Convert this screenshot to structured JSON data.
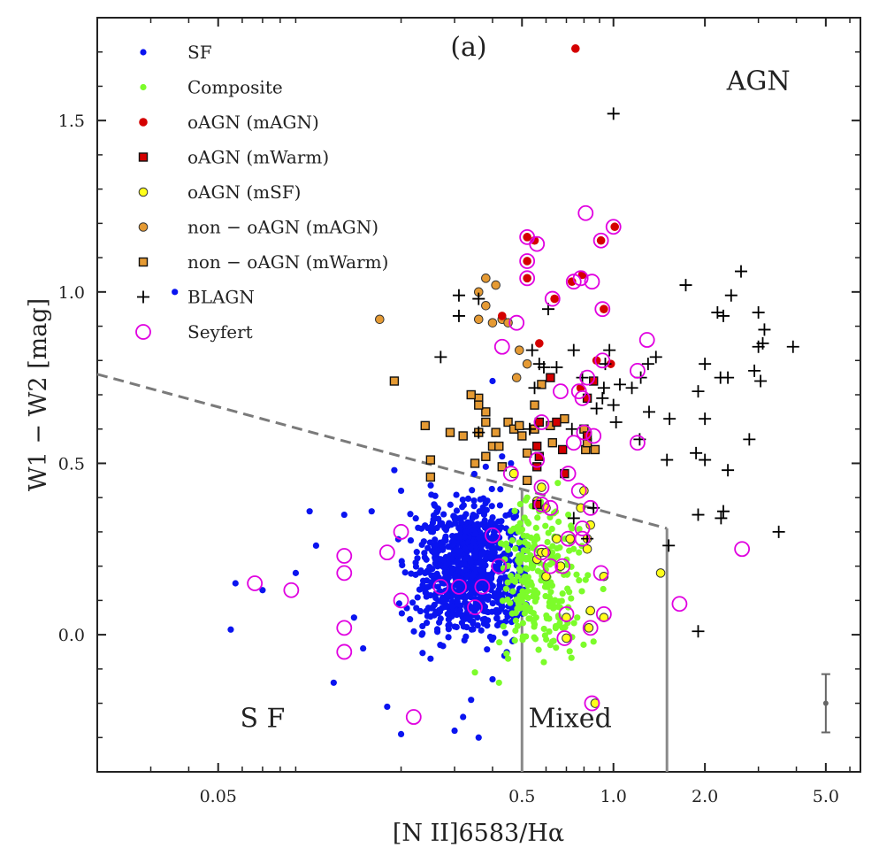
{
  "chart_data": {
    "type": "scatter",
    "panel_label": "(a)",
    "xlabel": "[N II]6583/Hα",
    "ylabel": "W1 − W2 [mag]",
    "x_scale": "log",
    "xlim": [
      0.02,
      6.5
    ],
    "ylim": [
      -0.4,
      1.8
    ],
    "x_ticks": [
      {
        "value": 0.05,
        "label": "0.05"
      },
      {
        "value": 0.5,
        "label": "0.5"
      },
      {
        "value": 1.0,
        "label": "1.0"
      },
      {
        "value": 2.0,
        "label": "2.0"
      },
      {
        "value": 5.0,
        "label": "5.0"
      }
    ],
    "y_ticks": [
      {
        "value": 0.0,
        "label": "0.0"
      },
      {
        "value": 0.5,
        "label": "0.5"
      },
      {
        "value": 1.0,
        "label": "1.0"
      },
      {
        "value": 1.5,
        "label": "1.5"
      }
    ],
    "grid": false,
    "legend_position": "top-left",
    "legend": [
      {
        "key": "sf",
        "label": "SF"
      },
      {
        "key": "comp",
        "label": "Composite"
      },
      {
        "key": "oagn_magn",
        "label": "oAGN (mAGN)"
      },
      {
        "key": "oagn_mwarm",
        "label": "oAGN (mWarm)"
      },
      {
        "key": "oagn_msf",
        "label": "oAGN (mSF)"
      },
      {
        "key": "non_magn",
        "label": "non − oAGN (mAGN)"
      },
      {
        "key": "non_mwarm",
        "label": "non − oAGN (mWarm)"
      },
      {
        "key": "blagn",
        "label": "BLAGN"
      },
      {
        "key": "seyfert",
        "label": "Seyfert"
      }
    ],
    "region_labels": [
      {
        "text": "AGN",
        "x": 3.0,
        "y": 1.59
      },
      {
        "text": "S F",
        "x": 0.07,
        "y": -0.27
      },
      {
        "text": "Mixed",
        "x": 0.72,
        "y": -0.27
      }
    ],
    "dividers": {
      "dashed": [
        [
          0.02,
          0.76
        ],
        [
          1.5,
          0.31
        ]
      ],
      "verticals": [
        {
          "x": 0.5,
          "y_top": 0.425
        },
        {
          "x": 1.5,
          "y_top": 0.31
        }
      ]
    },
    "error_bar": {
      "x": 5.0,
      "y": -0.2,
      "err": 0.085
    },
    "series": [
      {
        "key": "sf",
        "name": "SF",
        "color": "#0a14f0",
        "points": [
          [
            0.036,
            1.0
          ],
          [
            0.4,
            0.74
          ],
          [
            0.057,
            0.15
          ],
          [
            0.055,
            0.015
          ],
          [
            0.1,
            0.36
          ],
          [
            0.13,
            0.35
          ],
          [
            0.12,
            -0.14
          ],
          [
            0.2,
            -0.29
          ],
          [
            0.19,
            0.48
          ],
          [
            0.34,
            -0.19
          ],
          [
            0.4,
            -0.13
          ],
          [
            0.3,
            -0.28
          ],
          [
            0.25,
            -0.07
          ],
          [
            0.15,
            -0.04
          ],
          [
            0.14,
            0.05
          ],
          [
            0.18,
            -0.21
          ],
          [
            0.07,
            0.13
          ],
          [
            0.09,
            0.18
          ],
          [
            0.105,
            0.26
          ],
          [
            0.16,
            0.36
          ],
          [
            0.2,
            0.42
          ],
          [
            0.43,
            0.52
          ],
          [
            0.38,
            0.49
          ],
          [
            0.32,
            -0.24
          ],
          [
            0.36,
            -0.3
          ],
          [
            0.46,
            0.5
          ]
        ]
      },
      {
        "key": "comp",
        "name": "Composite",
        "color": "#7cfc2a",
        "points": [
          [
            0.52,
            0.33
          ],
          [
            0.58,
            0.18
          ],
          [
            0.64,
            0.28
          ],
          [
            0.71,
            0.08
          ],
          [
            0.77,
            0.24
          ],
          [
            0.55,
            0.03
          ],
          [
            0.49,
            0.21
          ],
          [
            0.62,
            -0.03
          ],
          [
            0.68,
            0.12
          ],
          [
            0.81,
            0.16
          ],
          [
            0.5,
            0.1
          ],
          [
            0.57,
            0.36
          ],
          [
            0.59,
            -0.08
          ],
          [
            0.66,
            0.05
          ],
          [
            0.73,
            0.31
          ],
          [
            0.86,
            -0.02
          ],
          [
            0.55,
            0.26
          ],
          [
            0.6,
            0.14
          ],
          [
            0.45,
            -0.07
          ],
          [
            0.52,
            0.4
          ],
          [
            0.63,
            0.21
          ],
          [
            0.7,
            -0.01
          ],
          [
            0.76,
            0.05
          ],
          [
            0.42,
            -0.14
          ],
          [
            0.35,
            -0.11
          ]
        ]
      },
      {
        "key": "oagn_magn",
        "name": "oAGN (mAGN)",
        "color": "#d40000",
        "points": [
          [
            0.75,
            1.71
          ],
          [
            0.43,
            0.93
          ],
          [
            0.57,
            0.85
          ],
          [
            0.98,
            0.79
          ],
          [
            0.88,
            0.8
          ],
          [
            0.79,
            1.05
          ],
          [
            0.52,
            1.16
          ],
          [
            0.55,
            1.15
          ],
          [
            0.64,
            0.98
          ],
          [
            0.73,
            1.03
          ],
          [
            0.93,
            0.95
          ],
          [
            0.52,
            1.09
          ],
          [
            0.52,
            1.04
          ],
          [
            0.91,
            1.15
          ],
          [
            1.01,
            1.19
          ],
          [
            0.78,
            0.72
          ]
        ]
      },
      {
        "key": "oagn_mwarm",
        "name": "oAGN (mWarm)",
        "color": "#d40000",
        "points": [
          [
            0.62,
            0.75
          ],
          [
            0.65,
            0.62
          ],
          [
            0.57,
            0.62
          ],
          [
            0.56,
            0.55
          ],
          [
            0.68,
            0.54
          ],
          [
            0.69,
            0.47
          ],
          [
            0.86,
            0.74
          ],
          [
            0.82,
            0.69
          ],
          [
            0.82,
            0.58
          ],
          [
            0.57,
            0.52
          ],
          [
            0.56,
            0.49
          ],
          [
            0.56,
            0.38
          ]
        ]
      },
      {
        "key": "oagn_msf",
        "name": "oAGN (mSF)",
        "color": "#ffff1a",
        "points": [
          [
            0.58,
            0.43
          ],
          [
            0.6,
            0.37
          ],
          [
            0.56,
            0.39
          ],
          [
            0.67,
            0.2
          ],
          [
            0.58,
            0.24
          ],
          [
            0.56,
            0.22
          ],
          [
            0.8,
            0.42
          ],
          [
            0.84,
            0.32
          ],
          [
            0.82,
            0.28
          ],
          [
            0.93,
            0.17
          ],
          [
            0.84,
            0.07
          ],
          [
            0.7,
            0.05
          ],
          [
            0.83,
            0.02
          ],
          [
            0.93,
            0.05
          ],
          [
            0.7,
            -0.01
          ],
          [
            0.87,
            -0.2
          ],
          [
            0.78,
            0.37
          ],
          [
            0.65,
            0.28
          ],
          [
            0.6,
            0.17
          ],
          [
            0.47,
            0.47
          ],
          [
            0.72,
            0.28
          ],
          [
            0.82,
            0.25
          ],
          [
            1.43,
            0.18
          ],
          [
            0.6,
            0.24
          ]
        ]
      },
      {
        "key": "non_magn",
        "name": "non − oAGN (mAGN)",
        "color": "#e59a33",
        "points": [
          [
            0.17,
            0.92
          ],
          [
            0.36,
            0.92
          ],
          [
            0.36,
            1.0
          ],
          [
            0.38,
            1.04
          ],
          [
            0.41,
            1.02
          ],
          [
            0.38,
            0.96
          ],
          [
            0.4,
            0.91
          ],
          [
            0.43,
            0.92
          ],
          [
            0.45,
            0.91
          ],
          [
            0.49,
            0.83
          ],
          [
            0.52,
            0.79
          ],
          [
            0.48,
            0.75
          ]
        ]
      },
      {
        "key": "non_mwarm",
        "name": "non − oAGN (mWarm)",
        "color": "#e59a33",
        "points": [
          [
            0.19,
            0.74
          ],
          [
            0.24,
            0.61
          ],
          [
            0.25,
            0.51
          ],
          [
            0.25,
            0.46
          ],
          [
            0.29,
            0.59
          ],
          [
            0.32,
            0.58
          ],
          [
            0.36,
            0.59
          ],
          [
            0.38,
            0.65
          ],
          [
            0.36,
            0.69
          ],
          [
            0.38,
            0.62
          ],
          [
            0.4,
            0.55
          ],
          [
            0.41,
            0.59
          ],
          [
            0.42,
            0.55
          ],
          [
            0.45,
            0.62
          ],
          [
            0.47,
            0.6
          ],
          [
            0.49,
            0.61
          ],
          [
            0.5,
            0.58
          ],
          [
            0.52,
            0.53
          ],
          [
            0.52,
            0.45
          ],
          [
            0.35,
            0.5
          ],
          [
            0.36,
            0.67
          ],
          [
            0.34,
            0.7
          ],
          [
            0.38,
            0.52
          ],
          [
            0.43,
            0.49
          ],
          [
            0.58,
            0.73
          ],
          [
            0.55,
            0.67
          ],
          [
            0.62,
            0.61
          ],
          [
            0.63,
            0.56
          ],
          [
            0.55,
            0.6
          ],
          [
            0.8,
            0.6
          ],
          [
            0.81,
            0.54
          ],
          [
            0.87,
            0.54
          ],
          [
            0.82,
            0.56
          ],
          [
            0.69,
            0.63
          ]
        ]
      },
      {
        "key": "blagn",
        "name": "BLAGN",
        "color": "#000000",
        "points": [
          [
            1.0,
            1.52
          ],
          [
            0.31,
            0.99
          ],
          [
            0.31,
            0.93
          ],
          [
            0.36,
            0.98
          ],
          [
            0.61,
            0.95
          ],
          [
            0.59,
            0.78
          ],
          [
            0.57,
            0.79
          ],
          [
            0.54,
            0.83
          ],
          [
            0.65,
            0.78
          ],
          [
            0.74,
            0.83
          ],
          [
            0.97,
            0.83
          ],
          [
            0.94,
            0.79
          ],
          [
            0.79,
            0.75
          ],
          [
            0.93,
            0.72
          ],
          [
            0.92,
            0.69
          ],
          [
            0.88,
            0.66
          ],
          [
            1.0,
            0.67
          ],
          [
            1.05,
            0.73
          ],
          [
            1.15,
            0.72
          ],
          [
            1.3,
            0.79
          ],
          [
            1.38,
            0.81
          ],
          [
            1.23,
            0.75
          ],
          [
            1.02,
            0.62
          ],
          [
            1.31,
            0.65
          ],
          [
            1.53,
            0.63
          ],
          [
            1.22,
            0.57
          ],
          [
            1.5,
            0.51
          ],
          [
            1.87,
            0.53
          ],
          [
            2.0,
            0.51
          ],
          [
            2.38,
            0.48
          ],
          [
            1.73,
            1.02
          ],
          [
            2.2,
            0.94
          ],
          [
            2.3,
            0.93
          ],
          [
            2.63,
            1.06
          ],
          [
            2.44,
            0.99
          ],
          [
            3.0,
            0.94
          ],
          [
            3.14,
            0.89
          ],
          [
            3.0,
            0.84
          ],
          [
            3.1,
            0.85
          ],
          [
            3.9,
            0.84
          ],
          [
            2.0,
            0.79
          ],
          [
            1.9,
            0.71
          ],
          [
            2.25,
            0.75
          ],
          [
            2.38,
            0.75
          ],
          [
            2.91,
            0.77
          ],
          [
            3.05,
            0.74
          ],
          [
            2.0,
            0.63
          ],
          [
            2.8,
            0.57
          ],
          [
            1.9,
            0.35
          ],
          [
            2.26,
            0.34
          ],
          [
            2.3,
            0.36
          ],
          [
            3.5,
            0.3
          ],
          [
            1.9,
            0.01
          ],
          [
            1.52,
            0.26
          ],
          [
            0.27,
            0.81
          ],
          [
            0.36,
            0.59
          ],
          [
            0.55,
            0.72
          ],
          [
            0.53,
            0.6
          ],
          [
            0.73,
            0.6
          ],
          [
            0.74,
            0.34
          ],
          [
            0.82,
            0.28
          ],
          [
            0.86,
            0.37
          ]
        ]
      },
      {
        "key": "seyfert",
        "name": "Seyfert",
        "color": "#e000e0",
        "points": [
          [
            0.066,
            0.15
          ],
          [
            0.087,
            0.13
          ],
          [
            0.13,
            0.23
          ],
          [
            0.13,
            0.18
          ],
          [
            0.18,
            0.24
          ],
          [
            0.2,
            0.3
          ],
          [
            0.2,
            0.1
          ],
          [
            0.27,
            0.14
          ],
          [
            0.31,
            0.14
          ],
          [
            0.35,
            0.08
          ],
          [
            0.42,
            0.2
          ],
          [
            0.46,
            0.47
          ],
          [
            0.48,
            0.91
          ],
          [
            0.43,
            0.84
          ],
          [
            0.52,
            1.16
          ],
          [
            0.56,
            1.14
          ],
          [
            0.52,
            1.09
          ],
          [
            0.52,
            1.04
          ],
          [
            0.63,
            0.98
          ],
          [
            0.74,
            1.03
          ],
          [
            0.78,
            1.04
          ],
          [
            0.81,
            1.23
          ],
          [
            0.85,
            1.03
          ],
          [
            0.91,
            1.15
          ],
          [
            1.0,
            1.19
          ],
          [
            0.92,
            0.95
          ],
          [
            0.67,
            0.71
          ],
          [
            0.77,
            0.71
          ],
          [
            0.79,
            0.69
          ],
          [
            0.82,
            0.75
          ],
          [
            0.86,
            0.58
          ],
          [
            0.92,
            0.8
          ],
          [
            1.29,
            0.86
          ],
          [
            1.2,
            0.77
          ],
          [
            1.2,
            0.56
          ],
          [
            0.58,
            0.62
          ],
          [
            0.56,
            0.51
          ],
          [
            0.58,
            0.43
          ],
          [
            0.58,
            0.38
          ],
          [
            0.62,
            0.37
          ],
          [
            0.58,
            0.24
          ],
          [
            0.68,
            0.2
          ],
          [
            0.77,
            0.42
          ],
          [
            0.79,
            0.31
          ],
          [
            0.71,
            0.28
          ],
          [
            0.71,
            0.47
          ],
          [
            0.74,
            0.56
          ],
          [
            0.8,
            0.59
          ],
          [
            0.84,
            0.37
          ],
          [
            0.91,
            0.18
          ],
          [
            0.7,
            0.06
          ],
          [
            0.84,
            0.02
          ],
          [
            0.93,
            0.06
          ],
          [
            0.69,
            -0.01
          ],
          [
            0.85,
            -0.2
          ],
          [
            1.65,
            0.09
          ],
          [
            2.65,
            0.25
          ],
          [
            0.13,
            0.02
          ],
          [
            0.13,
            -0.05
          ],
          [
            0.22,
            -0.24
          ],
          [
            0.4,
            0.29
          ],
          [
            0.37,
            0.14
          ],
          [
            0.62,
            0.2
          ],
          [
            0.79,
            0.28
          ]
        ]
      }
    ]
  }
}
